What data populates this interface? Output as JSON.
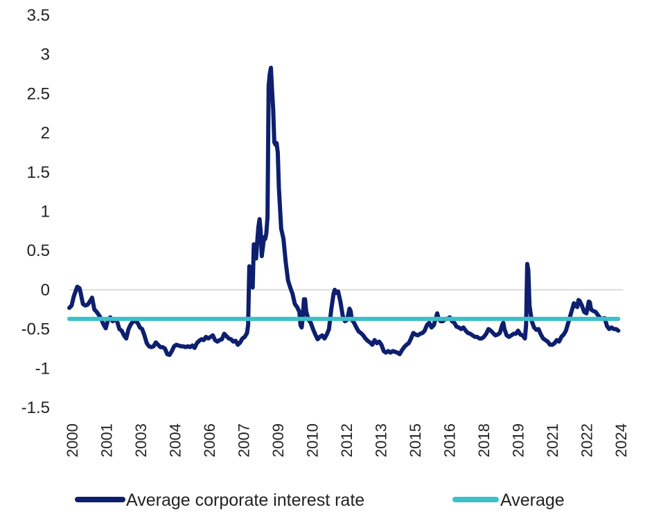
{
  "chart_data": {
    "type": "line",
    "title": "",
    "xlabel": "",
    "ylabel": "",
    "ylim": [
      -1.5,
      3.5
    ],
    "y_ticks": [
      3.5,
      3,
      2.5,
      2,
      1.5,
      1,
      0.5,
      0,
      -0.5,
      -1,
      -1.5
    ],
    "x_tick_labels": [
      "2000",
      "2001",
      "2003",
      "2004",
      "2006",
      "2007",
      "2009",
      "2010",
      "2012",
      "2013",
      "2015",
      "2016",
      "2018",
      "2019",
      "2021",
      "2022",
      "2024"
    ],
    "xlim": [
      2000.0,
      2024.3
    ],
    "zero_line": true,
    "legend_position": "bottom",
    "series": [
      {
        "name": "Average corporate interest rate",
        "color": "#0d1f6e",
        "points": [
          [
            2000.0,
            -0.23
          ],
          [
            2000.1,
            -0.2
          ],
          [
            2000.2,
            -0.08
          ],
          [
            2000.3,
            0.0
          ],
          [
            2000.35,
            0.04
          ],
          [
            2000.45,
            0.02
          ],
          [
            2000.5,
            -0.04
          ],
          [
            2000.6,
            -0.18
          ],
          [
            2000.7,
            -0.2
          ],
          [
            2000.8,
            -0.19
          ],
          [
            2000.9,
            -0.15
          ],
          [
            2001.0,
            -0.1
          ],
          [
            2001.1,
            -0.25
          ],
          [
            2001.2,
            -0.28
          ],
          [
            2001.3,
            -0.32
          ],
          [
            2001.4,
            -0.37
          ],
          [
            2001.5,
            -0.44
          ],
          [
            2001.6,
            -0.49
          ],
          [
            2001.7,
            -0.38
          ],
          [
            2001.8,
            -0.35
          ],
          [
            2001.9,
            -0.4
          ],
          [
            2002.0,
            -0.38
          ],
          [
            2002.1,
            -0.4
          ],
          [
            2002.2,
            -0.5
          ],
          [
            2002.3,
            -0.52
          ],
          [
            2002.4,
            -0.58
          ],
          [
            2002.5,
            -0.62
          ],
          [
            2002.6,
            -0.5
          ],
          [
            2002.7,
            -0.44
          ],
          [
            2002.8,
            -0.4
          ],
          [
            2002.9,
            -0.4
          ],
          [
            2003.0,
            -0.42
          ],
          [
            2003.1,
            -0.48
          ],
          [
            2003.2,
            -0.5
          ],
          [
            2003.3,
            -0.58
          ],
          [
            2003.4,
            -0.68
          ],
          [
            2003.5,
            -0.72
          ],
          [
            2003.6,
            -0.73
          ],
          [
            2003.7,
            -0.72
          ],
          [
            2003.8,
            -0.67
          ],
          [
            2003.9,
            -0.7
          ],
          [
            2004.0,
            -0.73
          ],
          [
            2004.1,
            -0.73
          ],
          [
            2004.2,
            -0.75
          ],
          [
            2004.3,
            -0.82
          ],
          [
            2004.4,
            -0.83
          ],
          [
            2004.5,
            -0.78
          ],
          [
            2004.6,
            -0.72
          ],
          [
            2004.7,
            -0.7
          ],
          [
            2004.8,
            -0.71
          ],
          [
            2004.9,
            -0.72
          ],
          [
            2005.0,
            -0.72
          ],
          [
            2005.1,
            -0.73
          ],
          [
            2005.2,
            -0.72
          ],
          [
            2005.3,
            -0.73
          ],
          [
            2005.4,
            -0.71
          ],
          [
            2005.5,
            -0.74
          ],
          [
            2005.6,
            -0.68
          ],
          [
            2005.7,
            -0.65
          ],
          [
            2005.8,
            -0.63
          ],
          [
            2005.9,
            -0.64
          ],
          [
            2006.0,
            -0.6
          ],
          [
            2006.1,
            -0.62
          ],
          [
            2006.2,
            -0.6
          ],
          [
            2006.3,
            -0.58
          ],
          [
            2006.4,
            -0.64
          ],
          [
            2006.5,
            -0.66
          ],
          [
            2006.6,
            -0.64
          ],
          [
            2006.7,
            -0.63
          ],
          [
            2006.8,
            -0.56
          ],
          [
            2006.9,
            -0.59
          ],
          [
            2007.0,
            -0.62
          ],
          [
            2007.1,
            -0.63
          ],
          [
            2007.2,
            -0.66
          ],
          [
            2007.3,
            -0.65
          ],
          [
            2007.4,
            -0.7
          ],
          [
            2007.5,
            -0.67
          ],
          [
            2007.6,
            -0.62
          ],
          [
            2007.7,
            -0.6
          ],
          [
            2007.8,
            -0.55
          ],
          [
            2007.85,
            -0.45
          ],
          [
            2007.9,
            0.3
          ],
          [
            2007.95,
            0.28
          ],
          [
            2008.0,
            0.05
          ],
          [
            2008.05,
            0.03
          ],
          [
            2008.1,
            0.58
          ],
          [
            2008.15,
            0.57
          ],
          [
            2008.2,
            0.4
          ],
          [
            2008.25,
            0.62
          ],
          [
            2008.3,
            0.8
          ],
          [
            2008.35,
            0.9
          ],
          [
            2008.4,
            0.75
          ],
          [
            2008.45,
            0.43
          ],
          [
            2008.5,
            0.55
          ],
          [
            2008.55,
            0.67
          ],
          [
            2008.6,
            0.65
          ],
          [
            2008.65,
            0.72
          ],
          [
            2008.7,
            0.93
          ],
          [
            2008.75,
            2.6
          ],
          [
            2008.8,
            2.75
          ],
          [
            2008.85,
            2.83
          ],
          [
            2008.9,
            2.55
          ],
          [
            2008.95,
            2.3
          ],
          [
            2009.0,
            1.88
          ],
          [
            2009.05,
            1.85
          ],
          [
            2009.1,
            1.87
          ],
          [
            2009.15,
            1.75
          ],
          [
            2009.2,
            1.3
          ],
          [
            2009.3,
            0.78
          ],
          [
            2009.4,
            0.65
          ],
          [
            2009.5,
            0.35
          ],
          [
            2009.6,
            0.12
          ],
          [
            2009.7,
            0.03
          ],
          [
            2009.8,
            -0.05
          ],
          [
            2009.9,
            -0.18
          ],
          [
            2010.0,
            -0.22
          ],
          [
            2010.1,
            -0.28
          ],
          [
            2010.15,
            -0.45
          ],
          [
            2010.2,
            -0.48
          ],
          [
            2010.25,
            -0.35
          ],
          [
            2010.3,
            -0.12
          ],
          [
            2010.35,
            -0.12
          ],
          [
            2010.4,
            -0.28
          ],
          [
            2010.5,
            -0.38
          ],
          [
            2010.6,
            -0.42
          ],
          [
            2010.7,
            -0.5
          ],
          [
            2010.8,
            -0.57
          ],
          [
            2010.9,
            -0.63
          ],
          [
            2011.0,
            -0.6
          ],
          [
            2011.1,
            -0.58
          ],
          [
            2011.2,
            -0.62
          ],
          [
            2011.3,
            -0.57
          ],
          [
            2011.4,
            -0.5
          ],
          [
            2011.5,
            -0.25
          ],
          [
            2011.6,
            -0.05
          ],
          [
            2011.65,
            0.0
          ],
          [
            2011.7,
            -0.04
          ],
          [
            2011.8,
            -0.02
          ],
          [
            2011.9,
            -0.15
          ],
          [
            2012.0,
            -0.33
          ],
          [
            2012.1,
            -0.4
          ],
          [
            2012.2,
            -0.38
          ],
          [
            2012.3,
            -0.24
          ],
          [
            2012.35,
            -0.27
          ],
          [
            2012.4,
            -0.38
          ],
          [
            2012.5,
            -0.42
          ],
          [
            2012.6,
            -0.48
          ],
          [
            2012.7,
            -0.53
          ],
          [
            2012.8,
            -0.55
          ],
          [
            2012.9,
            -0.58
          ],
          [
            2013.0,
            -0.62
          ],
          [
            2013.1,
            -0.65
          ],
          [
            2013.2,
            -0.67
          ],
          [
            2013.3,
            -0.7
          ],
          [
            2013.4,
            -0.64
          ],
          [
            2013.5,
            -0.68
          ],
          [
            2013.6,
            -0.66
          ],
          [
            2013.7,
            -0.7
          ],
          [
            2013.8,
            -0.78
          ],
          [
            2013.9,
            -0.8
          ],
          [
            2014.0,
            -0.78
          ],
          [
            2014.1,
            -0.8
          ],
          [
            2014.2,
            -0.78
          ],
          [
            2014.3,
            -0.79
          ],
          [
            2014.4,
            -0.8
          ],
          [
            2014.5,
            -0.82
          ],
          [
            2014.6,
            -0.77
          ],
          [
            2014.7,
            -0.73
          ],
          [
            2014.8,
            -0.7
          ],
          [
            2014.9,
            -0.68
          ],
          [
            2015.0,
            -0.62
          ],
          [
            2015.1,
            -0.55
          ],
          [
            2015.2,
            -0.57
          ],
          [
            2015.3,
            -0.58
          ],
          [
            2015.4,
            -0.56
          ],
          [
            2015.5,
            -0.55
          ],
          [
            2015.6,
            -0.52
          ],
          [
            2015.7,
            -0.45
          ],
          [
            2015.8,
            -0.42
          ],
          [
            2015.9,
            -0.48
          ],
          [
            2016.0,
            -0.45
          ],
          [
            2016.1,
            -0.35
          ],
          [
            2016.15,
            -0.3
          ],
          [
            2016.2,
            -0.36
          ],
          [
            2016.3,
            -0.4
          ],
          [
            2016.4,
            -0.4
          ],
          [
            2016.5,
            -0.37
          ],
          [
            2016.6,
            -0.37
          ],
          [
            2016.7,
            -0.35
          ],
          [
            2016.8,
            -0.4
          ],
          [
            2016.9,
            -0.42
          ],
          [
            2017.0,
            -0.47
          ],
          [
            2017.1,
            -0.48
          ],
          [
            2017.2,
            -0.5
          ],
          [
            2017.3,
            -0.48
          ],
          [
            2017.4,
            -0.52
          ],
          [
            2017.5,
            -0.55
          ],
          [
            2017.6,
            -0.56
          ],
          [
            2017.7,
            -0.58
          ],
          [
            2017.8,
            -0.6
          ],
          [
            2017.9,
            -0.6
          ],
          [
            2018.0,
            -0.62
          ],
          [
            2018.1,
            -0.62
          ],
          [
            2018.2,
            -0.6
          ],
          [
            2018.3,
            -0.56
          ],
          [
            2018.4,
            -0.5
          ],
          [
            2018.5,
            -0.52
          ],
          [
            2018.6,
            -0.55
          ],
          [
            2018.7,
            -0.58
          ],
          [
            2018.8,
            -0.57
          ],
          [
            2018.9,
            -0.55
          ],
          [
            2019.0,
            -0.45
          ],
          [
            2019.05,
            -0.42
          ],
          [
            2019.1,
            -0.5
          ],
          [
            2019.2,
            -0.58
          ],
          [
            2019.3,
            -0.6
          ],
          [
            2019.4,
            -0.58
          ],
          [
            2019.5,
            -0.56
          ],
          [
            2019.6,
            -0.56
          ],
          [
            2019.7,
            -0.52
          ],
          [
            2019.8,
            -0.57
          ],
          [
            2019.9,
            -0.58
          ],
          [
            2020.0,
            -0.62
          ],
          [
            2020.05,
            -0.45
          ],
          [
            2020.1,
            0.33
          ],
          [
            2020.15,
            0.25
          ],
          [
            2020.2,
            -0.2
          ],
          [
            2020.3,
            -0.4
          ],
          [
            2020.4,
            -0.48
          ],
          [
            2020.5,
            -0.51
          ],
          [
            2020.6,
            -0.5
          ],
          [
            2020.7,
            -0.57
          ],
          [
            2020.8,
            -0.62
          ],
          [
            2020.9,
            -0.64
          ],
          [
            2021.0,
            -0.66
          ],
          [
            2021.1,
            -0.7
          ],
          [
            2021.2,
            -0.7
          ],
          [
            2021.3,
            -0.68
          ],
          [
            2021.4,
            -0.64
          ],
          [
            2021.5,
            -0.66
          ],
          [
            2021.6,
            -0.6
          ],
          [
            2021.7,
            -0.57
          ],
          [
            2021.8,
            -0.52
          ],
          [
            2021.9,
            -0.42
          ],
          [
            2022.0,
            -0.32
          ],
          [
            2022.1,
            -0.22
          ],
          [
            2022.15,
            -0.17
          ],
          [
            2022.2,
            -0.2
          ],
          [
            2022.3,
            -0.22
          ],
          [
            2022.35,
            -0.13
          ],
          [
            2022.4,
            -0.14
          ],
          [
            2022.5,
            -0.2
          ],
          [
            2022.6,
            -0.28
          ],
          [
            2022.7,
            -0.3
          ],
          [
            2022.8,
            -0.15
          ],
          [
            2022.85,
            -0.16
          ],
          [
            2022.9,
            -0.25
          ],
          [
            2023.0,
            -0.27
          ],
          [
            2023.1,
            -0.28
          ],
          [
            2023.2,
            -0.32
          ],
          [
            2023.3,
            -0.36
          ],
          [
            2023.4,
            -0.37
          ],
          [
            2023.5,
            -0.36
          ],
          [
            2023.6,
            -0.46
          ],
          [
            2023.7,
            -0.5
          ],
          [
            2023.8,
            -0.48
          ],
          [
            2023.9,
            -0.5
          ],
          [
            2024.0,
            -0.5
          ],
          [
            2024.1,
            -0.52
          ]
        ]
      },
      {
        "name": "Average",
        "color": "#3dbfc7",
        "points": [
          [
            2000.0,
            -0.37
          ],
          [
            2024.1,
            -0.37
          ]
        ]
      }
    ]
  }
}
